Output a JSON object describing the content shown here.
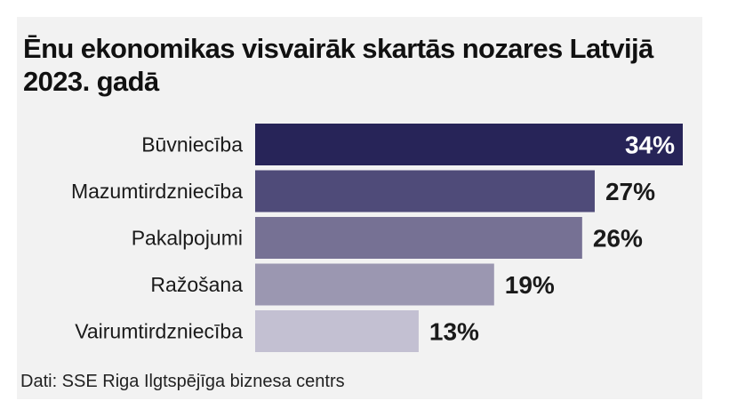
{
  "title": "Ēnu ekonomikas visvairāk skartās nozares Latvijā 2023. gadā",
  "source": "Dati: SSE Riga Ilgtspējīga biznesa centrs",
  "colors": {
    "bars": [
      "#272458",
      "#4f4b79",
      "#767194",
      "#9b97b1",
      "#c3c0d2"
    ],
    "background": "#f2f2f2",
    "inside_label": "#ffffff",
    "outside_label": "#1a1a1a"
  },
  "chart_data": {
    "type": "bar",
    "orientation": "horizontal",
    "title": "Ēnu ekonomikas visvairāk skartās nozares Latvijā 2023. gadā",
    "categories": [
      "Būvniecība",
      "Mazumtirdzniecība",
      "Pakalpojumi",
      "Ražošana",
      "Vairumtirdzniecība"
    ],
    "values": [
      34,
      27,
      26,
      19,
      13
    ],
    "labels": [
      "34%",
      "27%",
      "26%",
      "19%",
      "13%"
    ],
    "unit": "%",
    "xlim": [
      0,
      34
    ],
    "grid": false,
    "legend": "none"
  }
}
